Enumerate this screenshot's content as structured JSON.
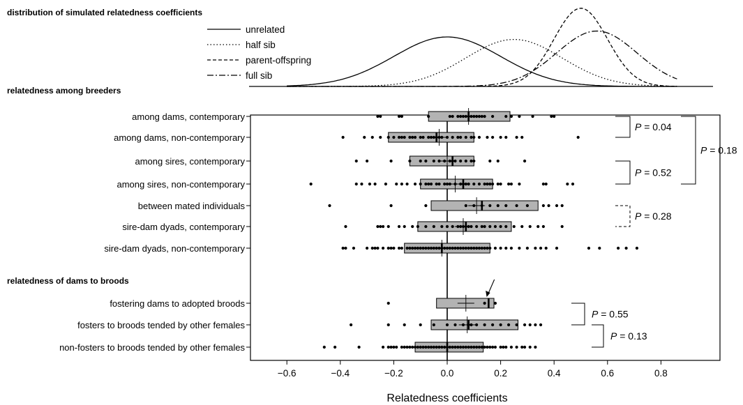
{
  "chart_data": {
    "type": "box",
    "title": "",
    "xlabel": "Relatedness coefficients",
    "xlim": [
      -0.62,
      0.98
    ],
    "xticks": [
      -0.6,
      -0.4,
      -0.2,
      0.0,
      0.2,
      0.4,
      0.6,
      0.8
    ],
    "xtick_labels": [
      "−0.6",
      "−0.4",
      "−0.2",
      "0.0",
      "0.2",
      "0.4",
      "0.6",
      "0.8"
    ],
    "density_panel": {
      "title": "distribution of simulated relatedness coefficients",
      "xrange": [
        -0.6,
        0.86
      ],
      "curves": [
        {
          "name": "unrelated",
          "style": "solid",
          "mean": 0.0,
          "sd": 0.2,
          "peak": 1.0
        },
        {
          "name": "half sib",
          "style": "dotted",
          "mean": 0.25,
          "sd": 0.18,
          "peak": 0.95
        },
        {
          "name": "parent-offspring",
          "style": "dashed",
          "mean": 0.5,
          "sd": 0.1,
          "peak": 1.58
        },
        {
          "name": "full sib",
          "style": "dashdot",
          "mean": 0.56,
          "sd": 0.15,
          "peak": 1.12
        }
      ]
    },
    "groups": [
      {
        "title": "relatedness among breeders",
        "rows": [
          {
            "label": "among dams, contemporary",
            "q1": -0.07,
            "median": 0.08,
            "q3": 0.235,
            "mean": 0.08,
            "points": [
              -0.26,
              -0.25,
              -0.18,
              -0.17,
              -0.07,
              0.01,
              0.02,
              0.04,
              0.05,
              0.06,
              0.07,
              0.08,
              0.09,
              0.1,
              0.11,
              0.12,
              0.13,
              0.14,
              0.17,
              0.22,
              0.24,
              0.27,
              0.32,
              0.39,
              0.4
            ]
          },
          {
            "label": "among dams, non-contemporary",
            "q1": -0.22,
            "median": -0.04,
            "q3": 0.1,
            "mean": -0.03,
            "points": [
              -0.39,
              -0.31,
              -0.28,
              -0.25,
              -0.22,
              -0.2,
              -0.18,
              -0.17,
              -0.16,
              -0.14,
              -0.13,
              -0.12,
              -0.1,
              -0.09,
              -0.07,
              -0.06,
              -0.05,
              -0.04,
              -0.03,
              -0.02,
              0.0,
              0.02,
              0.04,
              0.05,
              0.07,
              0.09,
              0.1,
              0.12,
              0.15,
              0.17,
              0.2,
              0.22,
              0.26,
              0.28,
              0.49
            ]
          },
          {
            "label": "among sires, contemporary",
            "q1": -0.14,
            "median": 0.02,
            "q3": 0.1,
            "mean": 0.0,
            "points": [
              -0.34,
              -0.3,
              -0.21,
              -0.14,
              -0.1,
              -0.08,
              -0.05,
              -0.03,
              -0.01,
              0.01,
              0.02,
              0.03,
              0.05,
              0.07,
              0.09,
              0.1,
              0.16,
              0.19,
              0.29
            ]
          },
          {
            "label": "among sires, non-contemporary",
            "q1": -0.1,
            "median": 0.06,
            "q3": 0.17,
            "mean": 0.03,
            "points": [
              -0.51,
              -0.34,
              -0.32,
              -0.29,
              -0.27,
              -0.23,
              -0.19,
              -0.17,
              -0.15,
              -0.12,
              -0.1,
              -0.08,
              -0.07,
              -0.06,
              -0.04,
              -0.03,
              -0.01,
              0.0,
              0.01,
              0.03,
              0.05,
              0.06,
              0.07,
              0.08,
              0.1,
              0.12,
              0.14,
              0.15,
              0.16,
              0.17,
              0.19,
              0.2,
              0.23,
              0.24,
              0.27,
              0.36,
              0.37,
              0.45,
              0.47
            ]
          },
          {
            "label": "between mated individuals",
            "q1": -0.06,
            "median": 0.13,
            "q3": 0.34,
            "mean": 0.11,
            "points": [
              -0.44,
              -0.21,
              -0.08,
              0.07,
              0.1,
              0.13,
              0.16,
              0.19,
              0.22,
              0.26,
              0.3,
              0.36,
              0.38,
              0.41,
              0.43
            ]
          },
          {
            "label": "sire-dam dyads, contemporary",
            "q1": -0.11,
            "median": 0.07,
            "q3": 0.24,
            "mean": 0.06,
            "points": [
              -0.38,
              -0.26,
              -0.25,
              -0.24,
              -0.22,
              -0.18,
              -0.16,
              -0.13,
              -0.11,
              -0.08,
              -0.05,
              -0.02,
              0.0,
              0.02,
              0.04,
              0.05,
              0.06,
              0.07,
              0.08,
              0.09,
              0.11,
              0.13,
              0.14,
              0.16,
              0.18,
              0.2,
              0.22,
              0.25,
              0.28,
              0.31,
              0.34,
              0.36,
              0.43
            ]
          },
          {
            "label": "sire-dam dyads, non-contemporary",
            "q1": -0.16,
            "median": -0.02,
            "q3": 0.16,
            "mean": -0.02,
            "points": [
              -0.39,
              -0.38,
              -0.35,
              -0.3,
              -0.28,
              -0.27,
              -0.26,
              -0.24,
              -0.22,
              -0.21,
              -0.2,
              -0.18,
              -0.17,
              -0.15,
              -0.14,
              -0.13,
              -0.12,
              -0.11,
              -0.1,
              -0.09,
              -0.08,
              -0.07,
              -0.06,
              -0.05,
              -0.04,
              -0.03,
              -0.02,
              -0.01,
              0.0,
              0.01,
              0.02,
              0.03,
              0.04,
              0.05,
              0.06,
              0.07,
              0.08,
              0.09,
              0.1,
              0.11,
              0.12,
              0.13,
              0.14,
              0.15,
              0.16,
              0.18,
              0.2,
              0.22,
              0.24,
              0.27,
              0.3,
              0.33,
              0.35,
              0.37,
              0.41,
              0.53,
              0.57,
              0.64,
              0.67,
              0.71
            ]
          }
        ]
      },
      {
        "title": "relatedness of dams to broods",
        "rows": [
          {
            "label": "fostering dams to adopted broods",
            "q1": -0.04,
            "median": 0.155,
            "q3": 0.175,
            "mean": 0.07,
            "points": [
              -0.22,
              0.14,
              0.18
            ],
            "arrow_at": 0.14
          },
          {
            "label": "fosters to broods tended by other females",
            "q1": -0.06,
            "median": 0.08,
            "q3": 0.265,
            "mean": 0.075,
            "points": [
              -0.36,
              -0.22,
              -0.16,
              -0.1,
              -0.05,
              0.0,
              0.03,
              0.06,
              0.08,
              0.09,
              0.11,
              0.14,
              0.17,
              0.2,
              0.23,
              0.26,
              0.29,
              0.31,
              0.33,
              0.35
            ]
          },
          {
            "label": "non-fosters to broods tended by other females",
            "q1": -0.12,
            "median": 0.0,
            "q3": 0.135,
            "mean": 0.0,
            "points": [
              -0.46,
              -0.42,
              -0.33,
              -0.24,
              -0.22,
              -0.21,
              -0.2,
              -0.19,
              -0.17,
              -0.16,
              -0.15,
              -0.14,
              -0.13,
              -0.12,
              -0.11,
              -0.1,
              -0.09,
              -0.08,
              -0.07,
              -0.06,
              -0.05,
              -0.04,
              -0.03,
              -0.02,
              -0.01,
              0.0,
              0.01,
              0.02,
              0.03,
              0.04,
              0.05,
              0.06,
              0.07,
              0.08,
              0.09,
              0.1,
              0.11,
              0.12,
              0.13,
              0.14,
              0.15,
              0.16,
              0.17,
              0.18,
              0.2,
              0.21,
              0.22,
              0.24,
              0.26,
              0.28,
              0.29,
              0.31,
              0.33
            ]
          }
        ]
      }
    ],
    "comparisons": [
      {
        "rows": [
          0,
          1
        ],
        "p_label": "P",
        "p_value": " = 0.04",
        "style": "solid",
        "level": 1
      },
      {
        "rows": [
          0,
          3
        ],
        "p_label": "P",
        "p_value": " = 0.18",
        "style": "solid",
        "level": 2
      },
      {
        "rows": [
          2,
          3
        ],
        "p_label": "P",
        "p_value": " = 0.52",
        "style": "solid",
        "level": 1
      },
      {
        "rows": [
          4,
          5
        ],
        "p_label": "P",
        "p_value": " = 0.28",
        "style": "dashed",
        "level": 1
      },
      {
        "rows": [
          7,
          8
        ],
        "p_label": "P",
        "p_value": " = 0.55",
        "style": "solid",
        "level": 1
      },
      {
        "rows": [
          8,
          9
        ],
        "p_label": "P",
        "p_value": " = 0.13",
        "style": "solid",
        "level": 1
      }
    ]
  }
}
